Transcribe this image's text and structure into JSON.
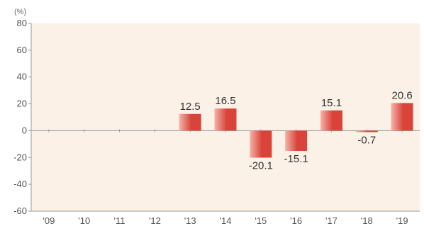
{
  "chart_data": {
    "type": "bar",
    "unit_label": "(%)",
    "categories": [
      "'09",
      "'10",
      "'11",
      "'12",
      "'13",
      "'14",
      "'15",
      "'16",
      "'17",
      "'18",
      "'19"
    ],
    "values": [
      null,
      null,
      null,
      null,
      12.5,
      16.5,
      -20.1,
      -15.1,
      15.1,
      -0.7,
      20.6
    ],
    "data_labels": [
      "",
      "",
      "",
      "",
      "12.5",
      "16.5",
      "-20.1",
      "-15.1",
      "15.1",
      "-0.7",
      "20.6"
    ],
    "ylim": [
      -60,
      80
    ],
    "yticks": [
      -60,
      -40,
      -20,
      0,
      20,
      40,
      60,
      80
    ],
    "grid": false,
    "colors": {
      "plot_background": "#fbf1e6",
      "bar_light": "#f6b3a8",
      "bar_dark": "#d9433a",
      "zero_line": "#9a9a9a",
      "axis": "#9a9a9a"
    }
  }
}
